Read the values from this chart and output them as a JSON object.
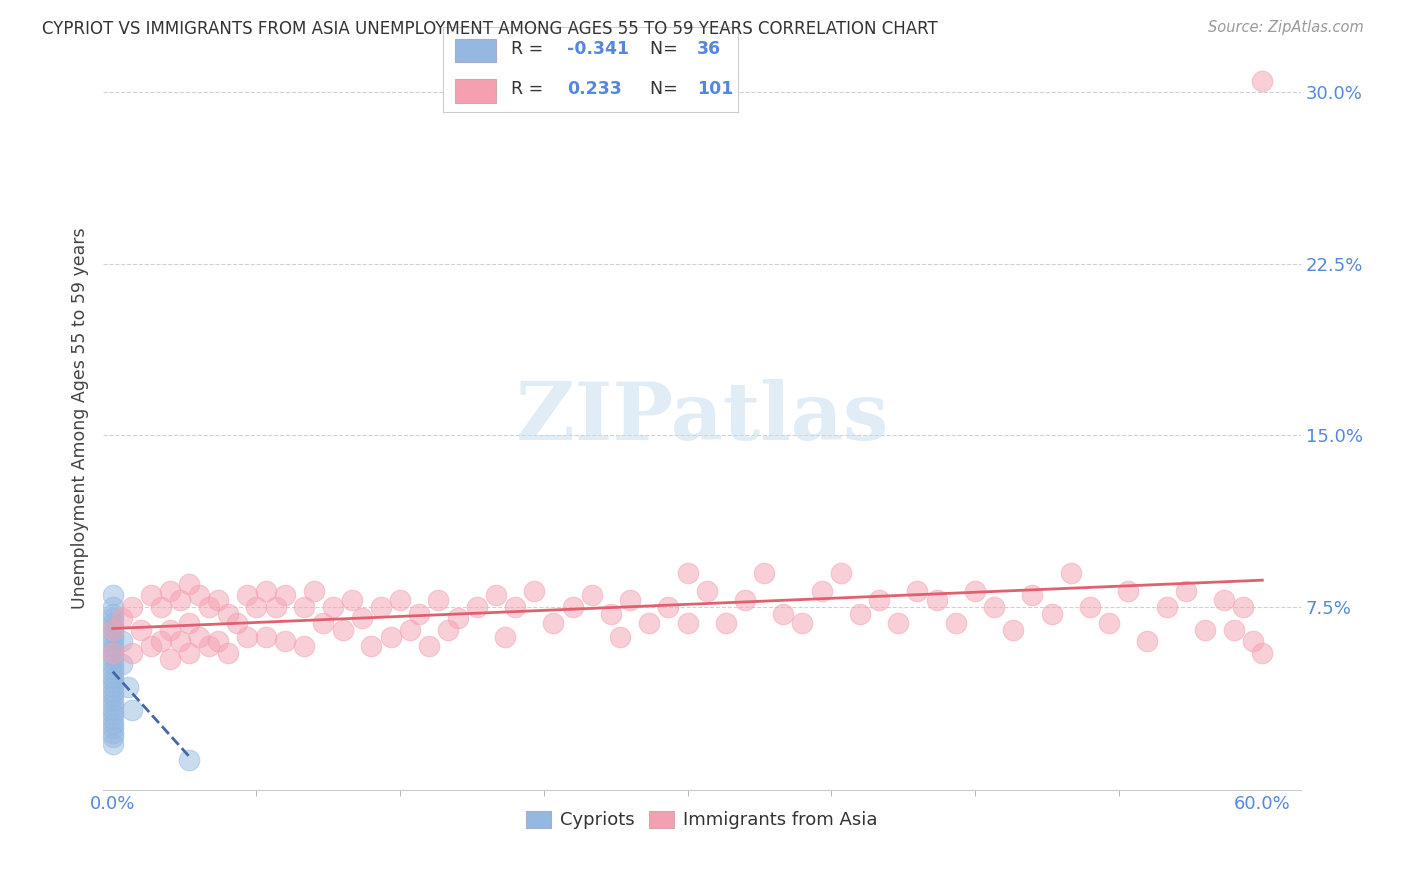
{
  "title": "CYPRIOT VS IMMIGRANTS FROM ASIA UNEMPLOYMENT AMONG AGES 55 TO 59 YEARS CORRELATION CHART",
  "source": "Source: ZipAtlas.com",
  "ylabel": "Unemployment Among Ages 55 to 59 years",
  "ylabel_ticks": [
    "7.5%",
    "15.0%",
    "22.5%",
    "30.0%"
  ],
  "ylabel_values": [
    0.075,
    0.15,
    0.225,
    0.3
  ],
  "ylim": [
    -0.005,
    0.32
  ],
  "xlim": [
    -0.005,
    0.62
  ],
  "xtick_minor_positions": [
    0.0,
    0.075,
    0.15,
    0.225,
    0.3,
    0.375,
    0.45,
    0.525,
    0.6
  ],
  "cypriot_R": -0.341,
  "cypriot_N": 36,
  "asia_R": 0.233,
  "asia_N": 101,
  "cypriot_color": "#94b8e0",
  "asia_color": "#f5a0b0",
  "trend_cypriot_color": "#4466aa",
  "trend_asia_color": "#e06070",
  "legend_label_cypriot": "Cypriots",
  "legend_label_asia": "Immigrants from Asia",
  "watermark_text": "ZIPatlas",
  "background_color": "#ffffff",
  "grid_color": "#cccccc",
  "tick_color": "#5588dd",
  "cypriot_x": [
    0.0,
    0.0,
    0.0,
    0.0,
    0.0,
    0.0,
    0.0,
    0.0,
    0.0,
    0.0,
    0.0,
    0.0,
    0.0,
    0.0,
    0.0,
    0.0,
    0.0,
    0.0,
    0.0,
    0.0,
    0.0,
    0.0,
    0.0,
    0.0,
    0.0,
    0.0,
    0.0,
    0.0,
    0.0,
    0.0,
    0.0,
    0.005,
    0.005,
    0.008,
    0.01,
    0.04
  ],
  "cypriot_y": [
    0.08,
    0.075,
    0.072,
    0.07,
    0.068,
    0.066,
    0.064,
    0.062,
    0.06,
    0.058,
    0.056,
    0.054,
    0.052,
    0.05,
    0.048,
    0.046,
    0.044,
    0.042,
    0.04,
    0.038,
    0.036,
    0.034,
    0.032,
    0.03,
    0.028,
    0.026,
    0.024,
    0.022,
    0.02,
    0.018,
    0.015,
    0.06,
    0.05,
    0.04,
    0.03,
    0.008
  ],
  "asia_x": [
    0.0,
    0.0,
    0.005,
    0.01,
    0.01,
    0.015,
    0.02,
    0.02,
    0.025,
    0.025,
    0.03,
    0.03,
    0.03,
    0.035,
    0.035,
    0.04,
    0.04,
    0.04,
    0.045,
    0.045,
    0.05,
    0.05,
    0.055,
    0.055,
    0.06,
    0.06,
    0.065,
    0.07,
    0.07,
    0.075,
    0.08,
    0.08,
    0.085,
    0.09,
    0.09,
    0.1,
    0.1,
    0.105,
    0.11,
    0.115,
    0.12,
    0.125,
    0.13,
    0.135,
    0.14,
    0.145,
    0.15,
    0.155,
    0.16,
    0.165,
    0.17,
    0.175,
    0.18,
    0.19,
    0.2,
    0.205,
    0.21,
    0.22,
    0.23,
    0.24,
    0.25,
    0.26,
    0.265,
    0.27,
    0.28,
    0.29,
    0.3,
    0.3,
    0.31,
    0.32,
    0.33,
    0.34,
    0.35,
    0.36,
    0.37,
    0.38,
    0.39,
    0.4,
    0.41,
    0.42,
    0.43,
    0.44,
    0.45,
    0.46,
    0.47,
    0.48,
    0.49,
    0.5,
    0.51,
    0.52,
    0.53,
    0.54,
    0.55,
    0.56,
    0.57,
    0.58,
    0.585,
    0.59,
    0.595,
    0.6,
    0.6
  ],
  "asia_y": [
    0.065,
    0.055,
    0.07,
    0.075,
    0.055,
    0.065,
    0.08,
    0.058,
    0.075,
    0.06,
    0.082,
    0.065,
    0.052,
    0.078,
    0.06,
    0.085,
    0.068,
    0.055,
    0.08,
    0.062,
    0.075,
    0.058,
    0.078,
    0.06,
    0.072,
    0.055,
    0.068,
    0.08,
    0.062,
    0.075,
    0.082,
    0.062,
    0.075,
    0.08,
    0.06,
    0.075,
    0.058,
    0.082,
    0.068,
    0.075,
    0.065,
    0.078,
    0.07,
    0.058,
    0.075,
    0.062,
    0.078,
    0.065,
    0.072,
    0.058,
    0.078,
    0.065,
    0.07,
    0.075,
    0.08,
    0.062,
    0.075,
    0.082,
    0.068,
    0.075,
    0.08,
    0.072,
    0.062,
    0.078,
    0.068,
    0.075,
    0.09,
    0.068,
    0.082,
    0.068,
    0.078,
    0.09,
    0.072,
    0.068,
    0.082,
    0.09,
    0.072,
    0.078,
    0.068,
    0.082,
    0.078,
    0.068,
    0.082,
    0.075,
    0.065,
    0.08,
    0.072,
    0.09,
    0.075,
    0.068,
    0.082,
    0.06,
    0.075,
    0.082,
    0.065,
    0.078,
    0.065,
    0.075,
    0.06,
    0.055,
    0.305
  ]
}
